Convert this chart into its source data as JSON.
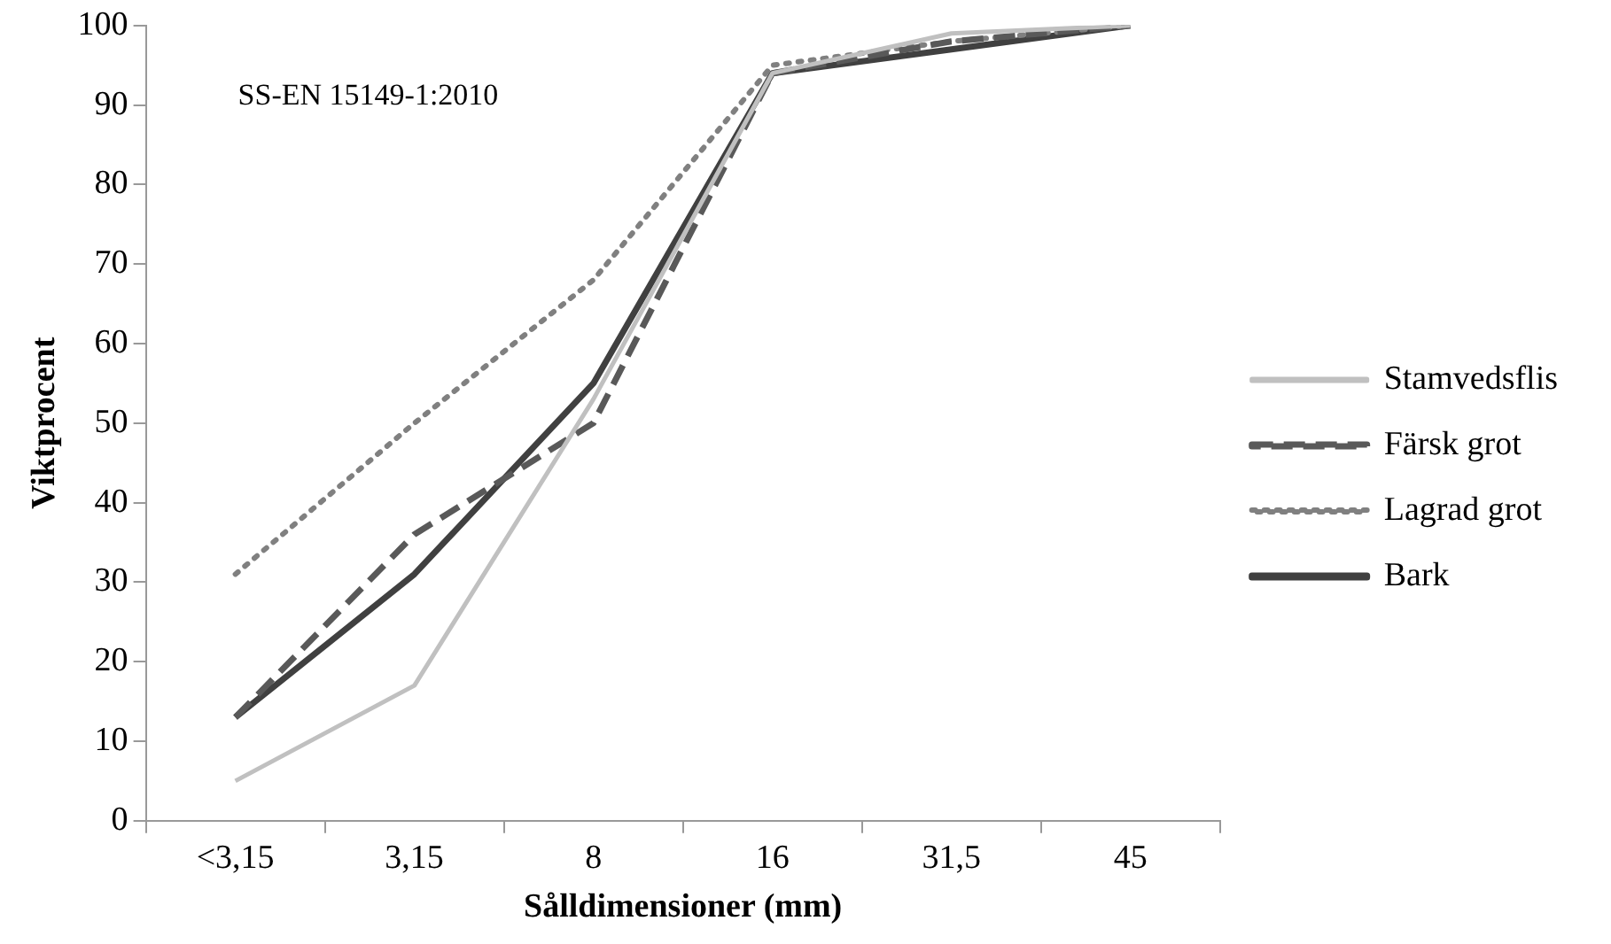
{
  "chart_data": {
    "type": "line",
    "xlabel": "Sålldimensioner (mm)",
    "ylabel": "Viktprocent",
    "categories": [
      "<3,15",
      "3,15",
      "8",
      "16",
      "31,5",
      "45"
    ],
    "ylim": [
      0,
      100
    ],
    "yticks": [
      0,
      10,
      20,
      30,
      40,
      50,
      60,
      70,
      80,
      90,
      100
    ],
    "grid": false,
    "legend": "right",
    "marker": "none",
    "annotations": [
      "SS-EN 15149-1:2010"
    ],
    "series": [
      {
        "name": "Stamvedsflis",
        "color": "#c0c0c0",
        "line_style": "solid",
        "values": [
          5,
          17,
          53,
          94,
          99,
          100
        ]
      },
      {
        "name": "Färsk grot",
        "color": "#595959",
        "line_style": "dashed",
        "values": [
          13,
          36,
          50,
          94,
          98,
          100
        ]
      },
      {
        "name": "Lagrad grot",
        "color": "#808080",
        "line_style": "dotted",
        "values": [
          31,
          50,
          68,
          95,
          98,
          100
        ]
      },
      {
        "name": "Bark",
        "color": "#404040",
        "line_style": "solid",
        "values": [
          13,
          31,
          55,
          94,
          97,
          100
        ]
      }
    ]
  }
}
